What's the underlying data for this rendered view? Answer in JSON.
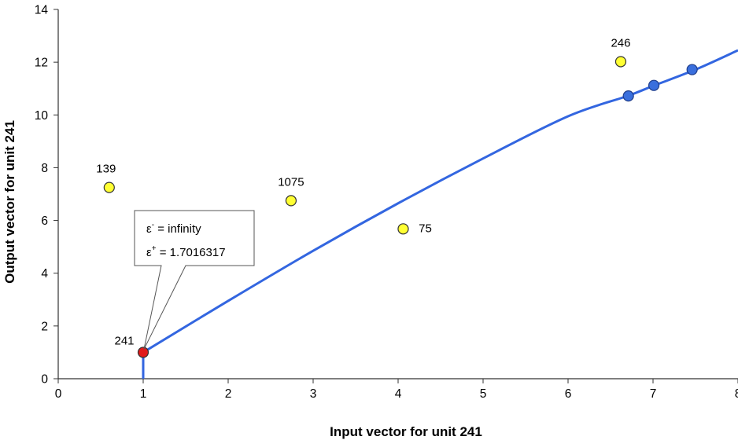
{
  "chart_data": {
    "type": "scatter",
    "xlabel": "Input vector for unit 241",
    "ylabel": "Output vector for unit 241",
    "xlim": [
      0,
      8
    ],
    "ylim": [
      0,
      14
    ],
    "x_ticks": [
      "0",
      "1",
      "2",
      "3",
      "4",
      "5",
      "6",
      "7",
      "8"
    ],
    "y_ticks": [
      "0",
      "2",
      "4",
      "6",
      "8",
      "10",
      "12",
      "14"
    ],
    "grid": false,
    "colors": {
      "line": "#3366e0",
      "yellow_point": "#ffff33",
      "blue_point": "#3a6fdd",
      "red_point": "#e11b1b"
    },
    "curve": {
      "x": [
        1,
        1,
        2,
        3,
        4,
        5,
        6,
        6.7,
        7,
        7.5,
        8
      ],
      "y": [
        0,
        1,
        2.95,
        4.85,
        6.65,
        8.35,
        9.95,
        10.72,
        11.1,
        11.72,
        12.45
      ]
    },
    "labeled_points": [
      {
        "label": "139",
        "x": 0.6,
        "y": 7.25,
        "color": "yellow"
      },
      {
        "label": "1075",
        "x": 2.74,
        "y": 6.75,
        "color": "yellow"
      },
      {
        "label": "75",
        "x": 4.06,
        "y": 5.68,
        "color": "yellow"
      },
      {
        "label": "246",
        "x": 6.62,
        "y": 12.02,
        "color": "yellow"
      },
      {
        "label": "241",
        "x": 1.0,
        "y": 1.0,
        "color": "red"
      }
    ],
    "curve_points": [
      {
        "x": 6.71,
        "y": 10.72
      },
      {
        "x": 7.01,
        "y": 11.12
      },
      {
        "x": 7.46,
        "y": 11.72
      }
    ],
    "annotation": {
      "line1_symbol": "ε",
      "line1_sup": "-",
      "line1_text": " = infinity",
      "line2_symbol": "ε",
      "line2_sup": "+",
      "line2_text": " = 1.7016317"
    }
  }
}
